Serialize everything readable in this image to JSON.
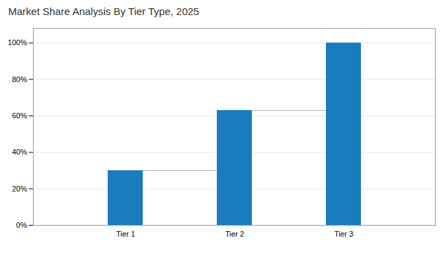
{
  "chart_data": {
    "type": "bar",
    "title": "Market Share Analysis By Tier Type, 2025",
    "categories": [
      "Tier 1",
      "Tier 2",
      "Tier 3"
    ],
    "values": [
      30,
      63,
      100
    ],
    "color": "#1a7bbf",
    "ylim": [
      0,
      108
    ],
    "yticks": [
      {
        "value": 0,
        "label": "0%"
      },
      {
        "value": 20,
        "label": "20%"
      },
      {
        "value": 40,
        "label": "40%"
      },
      {
        "value": 60,
        "label": "60%"
      },
      {
        "value": 80,
        "label": "80%"
      },
      {
        "value": 100,
        "label": "100%"
      }
    ],
    "grid": true
  }
}
